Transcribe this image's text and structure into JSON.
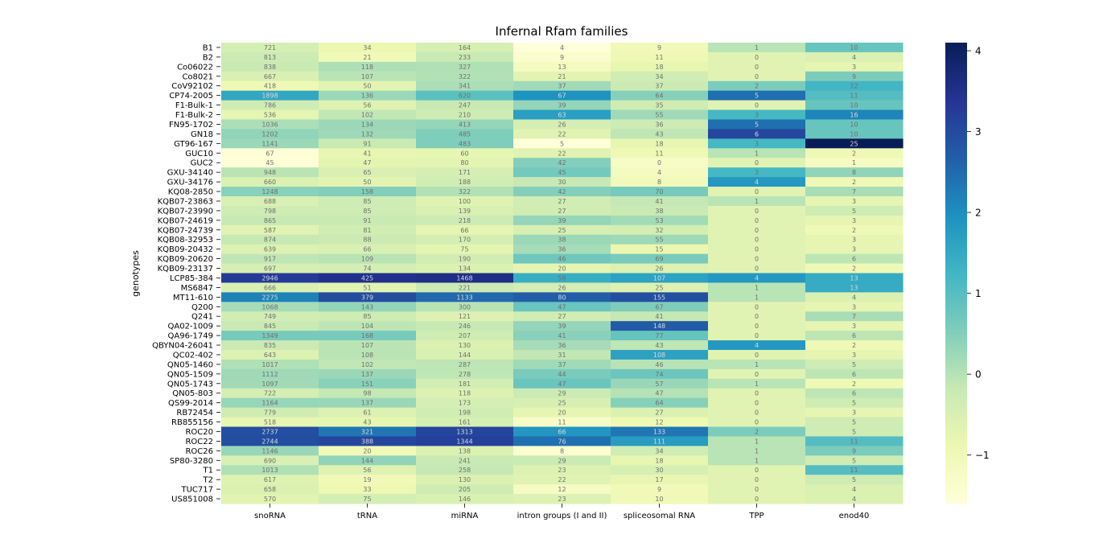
{
  "chart_data": {
    "type": "heatmap",
    "title": "Infernal Rfam families",
    "ylabel": "genotypes",
    "xlabel": "",
    "columns": [
      "snoRNA",
      "tRNA",
      "miRNA",
      "intron groups (I and II)",
      "spliceosomal RNA",
      "TPP",
      "enod40"
    ],
    "rows": [
      "B1",
      "B2",
      "Co06022",
      "Co8021",
      "CoV92102",
      "CP74-2005",
      "F1-Bulk-1",
      "F1-Bulk-2",
      "FN95-1702",
      "GN18",
      "GT96-167",
      "GUC10",
      "GUC2",
      "GXU-34140",
      "GXU-34176",
      "KQ08-2850",
      "KQB07-23863",
      "KQB07-23990",
      "KQB07-24619",
      "KQB07-24739",
      "KQB08-32953",
      "KQB09-20432",
      "KQB09-20620",
      "KQB09-23137",
      "LCP85-384",
      "MS6847",
      "MT11-610",
      "Q200",
      "Q241",
      "QA02-1009",
      "QA96-1749",
      "QBYN04-26041",
      "QC02-402",
      "QN05-1460",
      "QN05-1509",
      "QN05-1743",
      "QN05-803",
      "QS99-2014",
      "RB72454",
      "RB855156",
      "ROC20",
      "ROC22",
      "ROC26",
      "SP80-3280",
      "T1",
      "T2",
      "TUC717",
      "US851008"
    ],
    "values": [
      [
        721,
        34,
        164,
        4,
        9,
        1,
        10
      ],
      [
        813,
        21,
        233,
        9,
        11,
        0,
        4
      ],
      [
        838,
        118,
        327,
        13,
        18,
        0,
        3
      ],
      [
        667,
        107,
        322,
        21,
        34,
        0,
        9
      ],
      [
        418,
        50,
        341,
        37,
        37,
        2,
        12
      ],
      [
        1898,
        136,
        620,
        67,
        64,
        5,
        11
      ],
      [
        786,
        56,
        247,
        39,
        35,
        0,
        10
      ],
      [
        536,
        102,
        210,
        63,
        55,
        3,
        16
      ],
      [
        1036,
        134,
        413,
        26,
        36,
        5,
        10
      ],
      [
        1202,
        132,
        485,
        22,
        43,
        6,
        10
      ],
      [
        1141,
        91,
        483,
        5,
        18,
        3,
        25
      ],
      [
        67,
        41,
        60,
        22,
        11,
        1,
        2
      ],
      [
        45,
        47,
        80,
        42,
        0,
        0,
        1
      ],
      [
        948,
        65,
        171,
        45,
        4,
        3,
        8
      ],
      [
        660,
        50,
        188,
        30,
        8,
        4,
        2
      ],
      [
        1248,
        158,
        322,
        42,
        70,
        0,
        7
      ],
      [
        688,
        85,
        100,
        27,
        41,
        1,
        3
      ],
      [
        798,
        85,
        139,
        27,
        38,
        0,
        5
      ],
      [
        865,
        91,
        218,
        39,
        53,
        0,
        3
      ],
      [
        587,
        81,
        66,
        25,
        32,
        0,
        2
      ],
      [
        874,
        88,
        170,
        38,
        55,
        0,
        3
      ],
      [
        639,
        66,
        75,
        36,
        15,
        0,
        3
      ],
      [
        917,
        109,
        190,
        46,
        69,
        0,
        6
      ],
      [
        697,
        74,
        134,
        20,
        26,
        0,
        2
      ],
      [
        2946,
        425,
        1468,
        58,
        107,
        4,
        13
      ],
      [
        666,
        51,
        221,
        26,
        25,
        1,
        13
      ],
      [
        2275,
        379,
        1133,
        80,
        155,
        1,
        4
      ],
      [
        1068,
        143,
        300,
        47,
        67,
        0,
        3
      ],
      [
        749,
        85,
        121,
        27,
        41,
        0,
        7
      ],
      [
        845,
        104,
        246,
        39,
        148,
        0,
        3
      ],
      [
        1349,
        168,
        207,
        41,
        77,
        0,
        6
      ],
      [
        835,
        107,
        130,
        36,
        43,
        4,
        2
      ],
      [
        643,
        108,
        144,
        31,
        108,
        0,
        3
      ],
      [
        1017,
        102,
        287,
        37,
        46,
        1,
        5
      ],
      [
        1112,
        137,
        278,
        44,
        74,
        0,
        6
      ],
      [
        1097,
        151,
        181,
        47,
        57,
        1,
        2
      ],
      [
        722,
        98,
        118,
        29,
        47,
        0,
        6
      ],
      [
        1164,
        137,
        173,
        25,
        64,
        0,
        5
      ],
      [
        779,
        61,
        198,
        20,
        27,
        0,
        3
      ],
      [
        518,
        43,
        161,
        11,
        12,
        0,
        5
      ],
      [
        2737,
        321,
        1313,
        66,
        133,
        2,
        5
      ],
      [
        2744,
        388,
        1344,
        76,
        111,
        1,
        11
      ],
      [
        1146,
        20,
        138,
        8,
        34,
        1,
        9
      ],
      [
        690,
        144,
        241,
        29,
        18,
        1,
        5
      ],
      [
        1013,
        56,
        258,
        23,
        30,
        0,
        11
      ],
      [
        617,
        19,
        130,
        22,
        17,
        0,
        5
      ],
      [
        658,
        33,
        205,
        12,
        9,
        0,
        4
      ],
      [
        570,
        75,
        146,
        23,
        10,
        0,
        4
      ]
    ],
    "colorbar": {
      "min": -1.6,
      "max": 4.1,
      "ticks": [
        -1,
        0,
        1,
        2,
        3,
        4
      ],
      "tick_labels": [
        "−1",
        "0",
        "1",
        "2",
        "3",
        "4"
      ],
      "colormap": "YlGnBu"
    },
    "color_scaling": "z-score per column"
  }
}
